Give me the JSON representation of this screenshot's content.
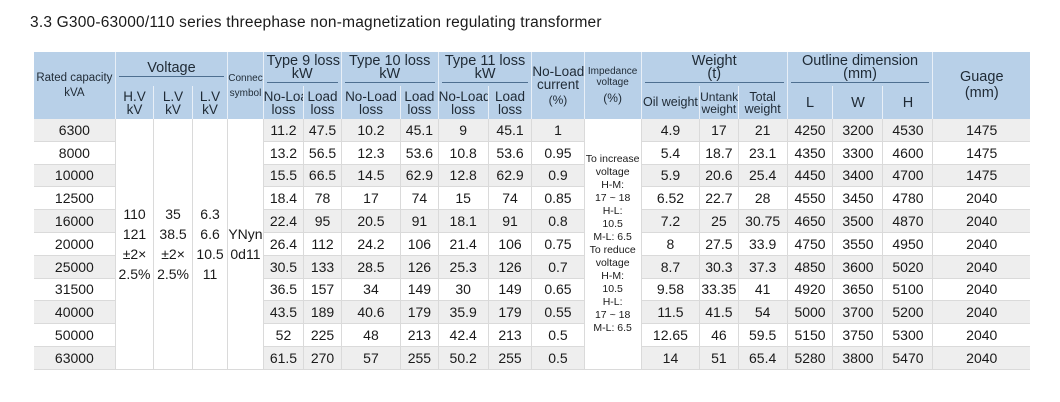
{
  "title": "3.3 G300-63000/110 series threephase non-magnetization regulating transformer",
  "headers": {
    "rated_capacity": "Rated capacity",
    "rated_capacity_unit": "kVA",
    "voltage": "Voltage",
    "hv": "H.V",
    "hv_unit": "kV",
    "lv1": "L.V",
    "lv1_unit": "kV",
    "lv2": "L.V",
    "lv2_unit": "kV",
    "connection": "Connection",
    "connection_sub": "symbol",
    "type9": "Type 9 loss",
    "type9_unit": "kW",
    "type10": "Type 10 loss",
    "type10_unit": "kW",
    "type11": "Type 11 loss",
    "type11_unit": "kW",
    "noload": "No-Load",
    "noload2": "loss",
    "load": "Load",
    "load2": "loss",
    "noload_current": "No-Load",
    "noload_current2": "current",
    "noload_current_unit": "(%)",
    "impedance": "Impedance",
    "impedance2": "voltage",
    "impedance_unit": "(%)",
    "weight": "Weight",
    "weight_unit": "(t)",
    "oil_weight": "Oil weight",
    "untanking": "Untanking",
    "untanking2": "weight",
    "total": "Total",
    "total2": "weight",
    "outline": "Outline dimension",
    "outline_unit": "(mm)",
    "L": "L",
    "W": "W",
    "H": "H",
    "guage": "Guage",
    "guage_unit": "(mm)"
  },
  "merged": {
    "hv": [
      "110",
      "121",
      "±2×",
      "2.5%"
    ],
    "lv1": [
      "35",
      "38.5",
      "±2×",
      "2.5%"
    ],
    "lv2": [
      "6.3",
      "6.6",
      "10.5",
      "11"
    ],
    "connection": [
      "YNyn",
      "0d11"
    ],
    "impedance": [
      "To increase",
      "voltage",
      "H-M:",
      "17 ~ 18",
      "H-L:",
      "10.5",
      "M-L: 6.5",
      "To reduce",
      "voltage",
      "H-M:",
      "10.5",
      "H-L:",
      "17 ~ 18",
      "M-L: 6.5"
    ]
  },
  "rows": [
    {
      "cap": "6300",
      "t9n": "11.2",
      "t9l": "47.5",
      "t10n": "10.2",
      "t10l": "45.1",
      "t11n": "9",
      "t11l": "45.1",
      "cur": "1",
      "oil": "4.9",
      "unt": "17",
      "tot": "21",
      "L": "4250",
      "W": "3200",
      "H": "4530",
      "g": "1475"
    },
    {
      "cap": "8000",
      "t9n": "13.2",
      "t9l": "56.5",
      "t10n": "12.3",
      "t10l": "53.6",
      "t11n": "10.8",
      "t11l": "53.6",
      "cur": "0.95",
      "oil": "5.4",
      "unt": "18.7",
      "tot": "23.1",
      "L": "4350",
      "W": "3300",
      "H": "4600",
      "g": "1475"
    },
    {
      "cap": "10000",
      "t9n": "15.5",
      "t9l": "66.5",
      "t10n": "14.5",
      "t10l": "62.9",
      "t11n": "12.8",
      "t11l": "62.9",
      "cur": "0.9",
      "oil": "5.9",
      "unt": "20.6",
      "tot": "25.4",
      "L": "4450",
      "W": "3400",
      "H": "4700",
      "g": "1475"
    },
    {
      "cap": "12500",
      "t9n": "18.4",
      "t9l": "78",
      "t10n": "17",
      "t10l": "74",
      "t11n": "15",
      "t11l": "74",
      "cur": "0.85",
      "oil": "6.52",
      "unt": "22.7",
      "tot": "28",
      "L": "4550",
      "W": "3450",
      "H": "4780",
      "g": "2040"
    },
    {
      "cap": "16000",
      "t9n": "22.4",
      "t9l": "95",
      "t10n": "20.5",
      "t10l": "91",
      "t11n": "18.1",
      "t11l": "91",
      "cur": "0.8",
      "oil": "7.2",
      "unt": "25",
      "tot": "30.75",
      "L": "4650",
      "W": "3500",
      "H": "4870",
      "g": "2040"
    },
    {
      "cap": "20000",
      "t9n": "26.4",
      "t9l": "112",
      "t10n": "24.2",
      "t10l": "106",
      "t11n": "21.4",
      "t11l": "106",
      "cur": "0.75",
      "oil": "8",
      "unt": "27.5",
      "tot": "33.9",
      "L": "4750",
      "W": "3550",
      "H": "4950",
      "g": "2040"
    },
    {
      "cap": "25000",
      "t9n": "30.5",
      "t9l": "133",
      "t10n": "28.5",
      "t10l": "126",
      "t11n": "25.3",
      "t11l": "126",
      "cur": "0.7",
      "oil": "8.7",
      "unt": "30.3",
      "tot": "37.3",
      "L": "4850",
      "W": "3600",
      "H": "5020",
      "g": "2040"
    },
    {
      "cap": "31500",
      "t9n": "36.5",
      "t9l": "157",
      "t10n": "34",
      "t10l": "149",
      "t11n": "30",
      "t11l": "149",
      "cur": "0.65",
      "oil": "9.58",
      "unt": "33.35",
      "tot": "41",
      "L": "4920",
      "W": "3650",
      "H": "5100",
      "g": "2040"
    },
    {
      "cap": "40000",
      "t9n": "43.5",
      "t9l": "189",
      "t10n": "40.6",
      "t10l": "179",
      "t11n": "35.9",
      "t11l": "179",
      "cur": "0.55",
      "oil": "11.5",
      "unt": "41.5",
      "tot": "54",
      "L": "5000",
      "W": "3700",
      "H": "5200",
      "g": "2040"
    },
    {
      "cap": "50000",
      "t9n": "52",
      "t9l": "225",
      "t10n": "48",
      "t10l": "213",
      "t11n": "42.4",
      "t11l": "213",
      "cur": "0.5",
      "oil": "12.65",
      "unt": "46",
      "tot": "59.5",
      "L": "5150",
      "W": "3750",
      "H": "5300",
      "g": "2040"
    },
    {
      "cap": "63000",
      "t9n": "61.5",
      "t9l": "270",
      "t10n": "57",
      "t10l": "255",
      "t11n": "50.2",
      "t11l": "255",
      "cur": "0.5",
      "oil": "14",
      "unt": "51",
      "tot": "65.4",
      "L": "5280",
      "W": "3800",
      "H": "5470",
      "g": "2040"
    }
  ]
}
